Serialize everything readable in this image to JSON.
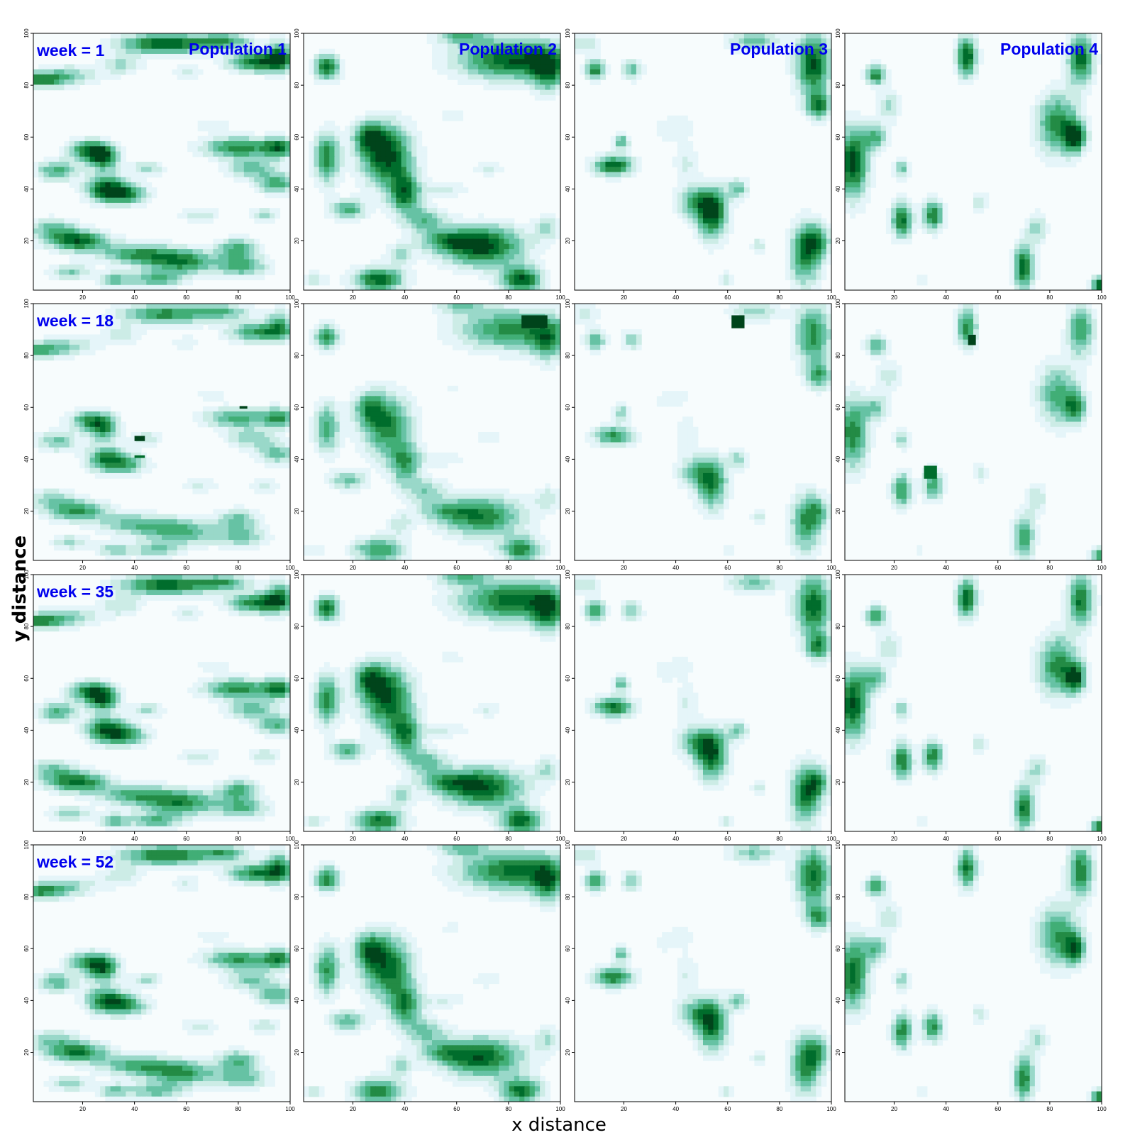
{
  "chart_data": {
    "type": "heatmap",
    "xlabel": "x distance",
    "ylabel": "y distance",
    "xlim": [
      1,
      100
    ],
    "ylim": [
      1,
      100
    ],
    "x_ticks": [
      20,
      40,
      60,
      80,
      100
    ],
    "y_ticks": [
      20,
      40,
      60,
      80,
      100
    ],
    "rows": [
      {
        "week": 1,
        "label": "week = 1"
      },
      {
        "week": 18,
        "label": "week = 18"
      },
      {
        "week": 35,
        "label": "week = 35"
      },
      {
        "week": 52,
        "label": "week = 52"
      }
    ],
    "columns": [
      {
        "population": 1,
        "label": "Population  1"
      },
      {
        "population": 2,
        "label": "Population  2"
      },
      {
        "population": 3,
        "label": "Population  3"
      },
      {
        "population": 4,
        "label": "Population  4"
      }
    ],
    "colorscale": [
      "#f7fcfd",
      "#e5f5f9",
      "#ccece6",
      "#99d8c9",
      "#66c2a4",
      "#41ae76",
      "#238b45",
      "#006d2c",
      "#00441b"
    ],
    "populations": [
      {
        "population": 1,
        "blobs": [
          [
            52,
            96,
            18,
            4,
            0.9
          ],
          [
            88,
            89,
            12,
            4,
            0.85
          ],
          [
            3,
            82,
            10,
            3,
            0.7
          ],
          [
            35,
            88,
            8,
            4,
            0.35
          ],
          [
            15,
            84,
            12,
            4,
            0.4
          ],
          [
            75,
            97,
            10,
            3,
            0.55
          ],
          [
            96,
            92,
            5,
            6,
            0.6
          ],
          [
            22,
            55,
            8,
            4,
            0.7
          ],
          [
            28,
            52,
            6,
            5,
            0.8
          ],
          [
            10,
            47,
            8,
            4,
            0.6
          ],
          [
            29,
            40,
            8,
            5,
            0.9
          ],
          [
            38,
            38,
            8,
            4,
            0.6
          ],
          [
            80,
            56,
            14,
            4,
            0.75
          ],
          [
            96,
            56,
            6,
            4,
            0.7
          ],
          [
            95,
            42,
            8,
            4,
            0.6
          ],
          [
            85,
            48,
            10,
            4,
            0.5
          ],
          [
            8,
            25,
            10,
            4,
            0.45
          ],
          [
            18,
            20,
            12,
            4,
            0.85
          ],
          [
            40,
            15,
            14,
            4,
            0.6
          ],
          [
            58,
            12,
            14,
            5,
            0.75
          ],
          [
            80,
            17,
            8,
            4,
            0.6
          ],
          [
            82,
            10,
            10,
            4,
            0.55
          ],
          [
            48,
            5,
            10,
            3,
            0.55
          ],
          [
            15,
            8,
            8,
            3,
            0.45
          ],
          [
            32,
            5,
            6,
            3,
            0.5
          ],
          [
            65,
            30,
            8,
            3,
            0.3
          ],
          [
            45,
            48,
            6,
            3,
            0.4
          ],
          [
            60,
            85,
            6,
            3,
            0.25
          ],
          [
            70,
            65,
            8,
            3,
            0.2
          ],
          [
            90,
            30,
            6,
            3,
            0.35
          ]
        ]
      },
      {
        "population": 2,
        "blobs": [
          [
            10,
            87,
            5,
            5,
            0.85
          ],
          [
            82,
            90,
            22,
            8,
            0.9
          ],
          [
            62,
            99,
            10,
            3,
            0.5
          ],
          [
            95,
            85,
            6,
            8,
            0.6
          ],
          [
            33,
            53,
            10,
            12,
            0.95
          ],
          [
            26,
            60,
            6,
            6,
            0.6
          ],
          [
            40,
            38,
            6,
            8,
            0.75
          ],
          [
            48,
            28,
            8,
            5,
            0.5
          ],
          [
            10,
            52,
            5,
            10,
            0.75
          ],
          [
            18,
            32,
            7,
            4,
            0.6
          ],
          [
            70,
            18,
            16,
            8,
            0.95
          ],
          [
            55,
            20,
            10,
            4,
            0.45
          ],
          [
            30,
            5,
            10,
            5,
            0.85
          ],
          [
            85,
            5,
            8,
            5,
            0.9
          ],
          [
            55,
            40,
            10,
            3,
            0.25
          ],
          [
            38,
            15,
            5,
            4,
            0.4
          ],
          [
            5,
            5,
            5,
            3,
            0.3
          ],
          [
            72,
            48,
            6,
            3,
            0.25
          ],
          [
            95,
            25,
            5,
            5,
            0.35
          ],
          [
            58,
            68,
            8,
            4,
            0.15
          ]
        ]
      },
      {
        "population": 3,
        "blobs": [
          [
            9,
            86,
            4,
            4,
            0.75
          ],
          [
            23,
            86,
            4,
            4,
            0.5
          ],
          [
            5,
            96,
            6,
            4,
            0.35
          ],
          [
            70,
            97,
            10,
            4,
            0.5
          ],
          [
            93,
            88,
            7,
            12,
            0.9
          ],
          [
            95,
            72,
            5,
            5,
            0.7
          ],
          [
            16,
            49,
            8,
            4,
            0.85
          ],
          [
            19,
            58,
            3,
            3,
            0.6
          ],
          [
            54,
            30,
            6,
            10,
            0.85
          ],
          [
            48,
            35,
            8,
            6,
            0.55
          ],
          [
            64,
            40,
            4,
            4,
            0.5
          ],
          [
            90,
            15,
            6,
            12,
            0.8
          ],
          [
            95,
            20,
            5,
            6,
            0.5
          ],
          [
            44,
            50,
            5,
            8,
            0.25
          ],
          [
            42,
            65,
            8,
            6,
            0.15
          ],
          [
            72,
            18,
            3,
            3,
            0.35
          ],
          [
            60,
            5,
            3,
            3,
            0.3
          ],
          [
            35,
            62,
            4,
            4,
            0.15
          ]
        ]
      },
      {
        "population": 4,
        "blobs": [
          [
            48,
            91,
            4,
            8,
            0.9
          ],
          [
            13,
            84,
            4,
            4,
            0.75
          ],
          [
            4,
            50,
            6,
            14,
            0.95
          ],
          [
            13,
            60,
            5,
            5,
            0.55
          ],
          [
            23,
            28,
            4,
            7,
            0.85
          ],
          [
            35,
            30,
            4,
            6,
            0.8
          ],
          [
            83,
            65,
            8,
            12,
            0.75
          ],
          [
            90,
            60,
            4,
            6,
            0.8
          ],
          [
            92,
            90,
            5,
            10,
            0.85
          ],
          [
            70,
            10,
            4,
            9,
            0.85
          ],
          [
            23,
            48,
            3,
            4,
            0.5
          ],
          [
            53,
            35,
            3,
            4,
            0.35
          ],
          [
            75,
            25,
            4,
            6,
            0.4
          ],
          [
            99,
            3,
            3,
            3,
            0.9
          ],
          [
            18,
            72,
            5,
            6,
            0.35
          ],
          [
            30,
            5,
            3,
            3,
            0.2
          ]
        ]
      }
    ],
    "row_adjustments": [
      {
        "week": 1,
        "scale": 1.0
      },
      {
        "week": 18,
        "scale": 0.8,
        "squares": [
          [
            1,
            42,
            48,
            4,
            2,
            0.95
          ],
          [
            1,
            42,
            41,
            4,
            1,
            0.8
          ],
          [
            1,
            82,
            60,
            3,
            1,
            0.95
          ],
          [
            2,
            90,
            93,
            10,
            5,
            0.95
          ],
          [
            3,
            64,
            93,
            5,
            5,
            0.95
          ],
          [
            4,
            34,
            35,
            5,
            5,
            0.8
          ],
          [
            4,
            50,
            86,
            3,
            4,
            0.95
          ]
        ]
      },
      {
        "week": 35,
        "scale": 0.95
      },
      {
        "week": 52,
        "scale": 0.9
      }
    ]
  }
}
